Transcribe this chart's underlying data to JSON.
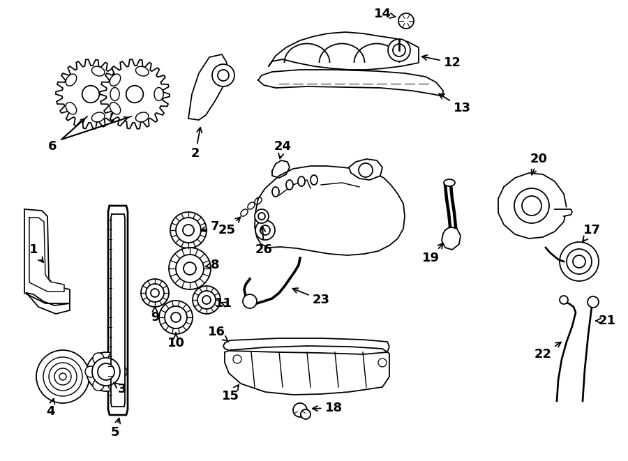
{
  "bg_color": "#ffffff",
  "line_color": "#000000",
  "lw": 1.3,
  "fontsize": 13
}
